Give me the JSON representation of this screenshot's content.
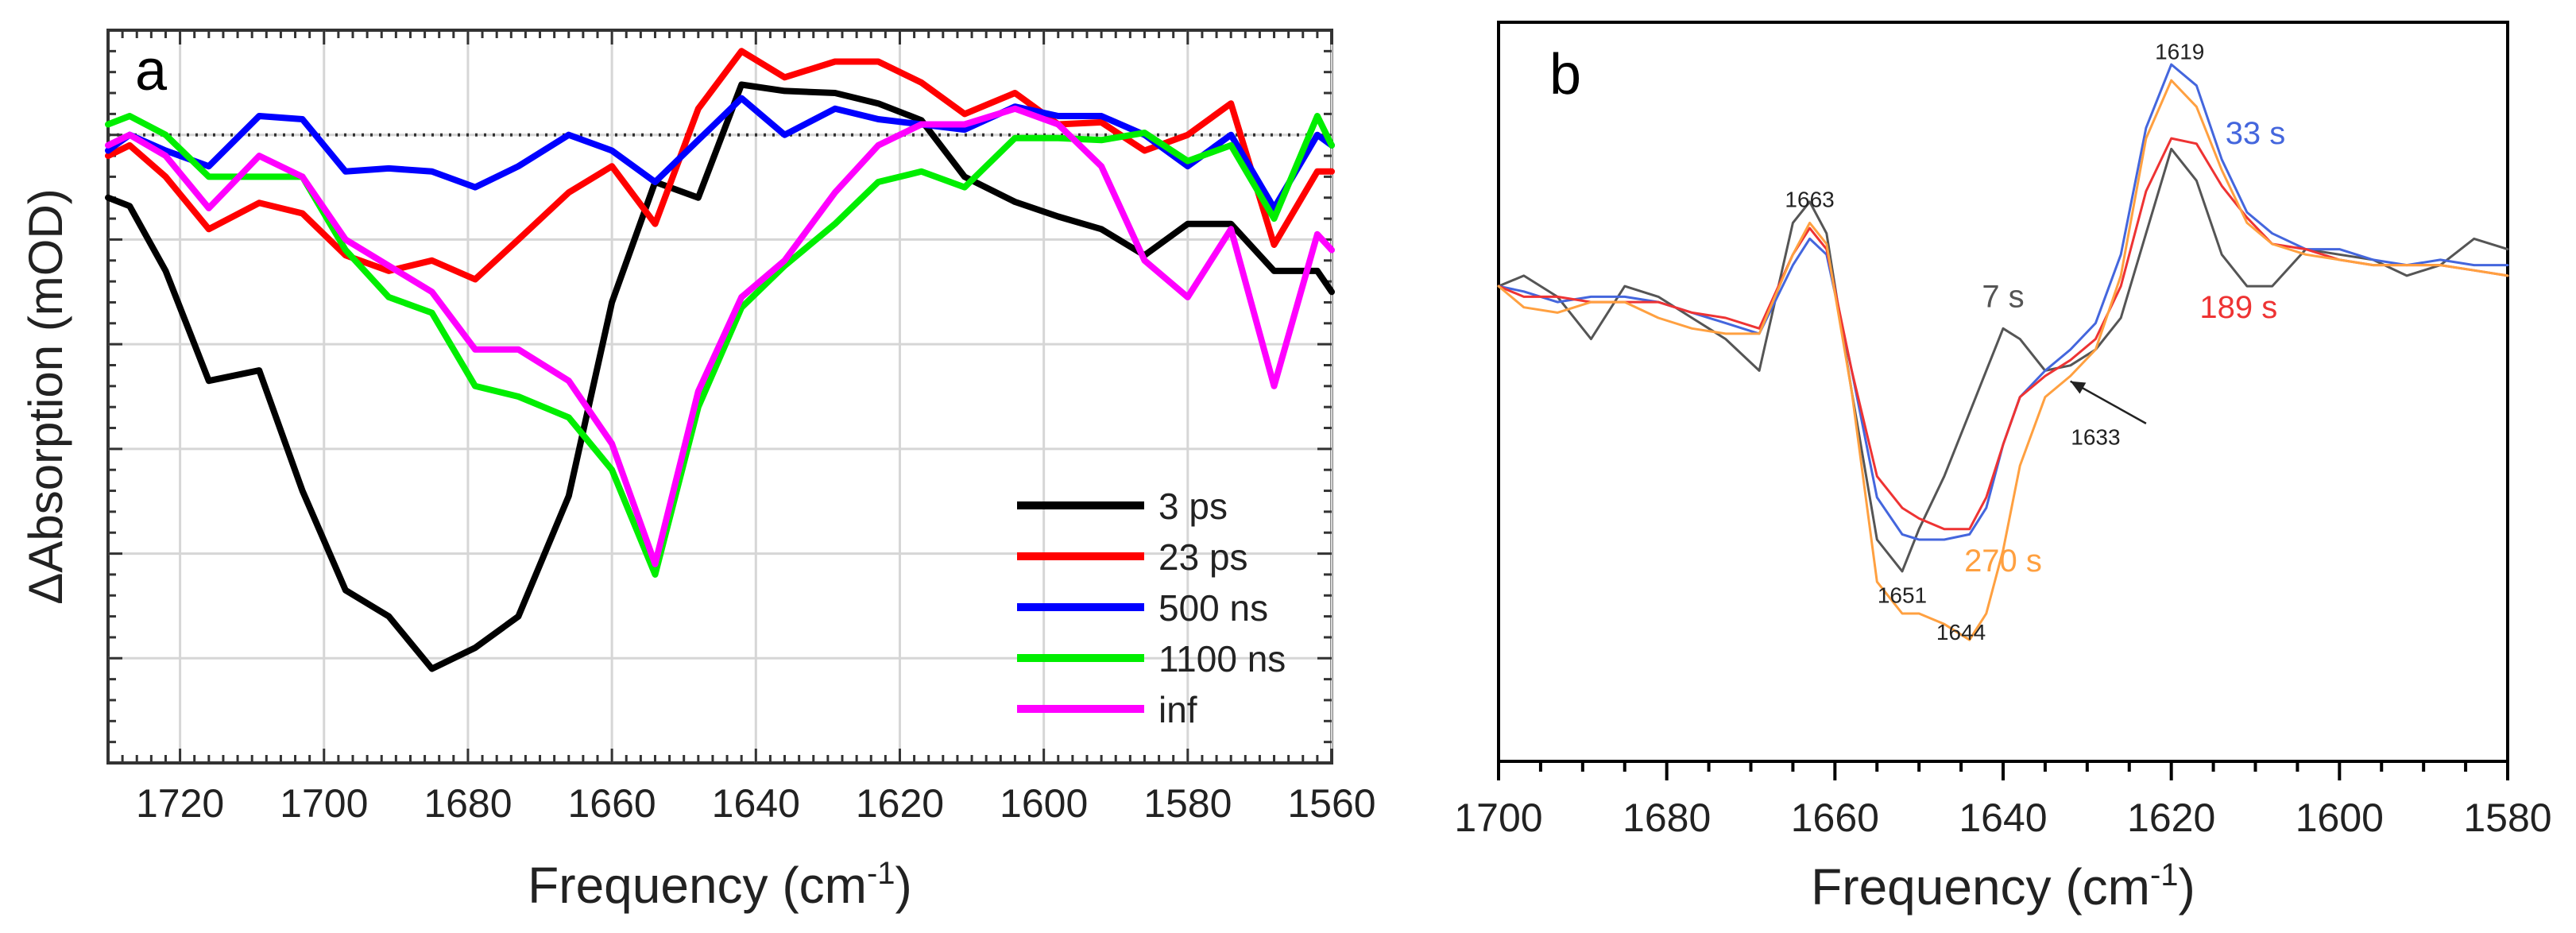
{
  "chart_data": [
    {
      "panel_label": "a",
      "type": "line",
      "xlabel": "Frequency (cm",
      "xlabel_sup": "-1",
      "xlabel_tail": ")",
      "ylabel": "ΔAbsorption (mOD)",
      "xlim": [
        1730,
        1560
      ],
      "ylim": [
        -6.0,
        1.0
      ],
      "xticks": [
        1720,
        1700,
        1680,
        1660,
        1640,
        1620,
        1600,
        1580,
        1560
      ],
      "ygrid": [
        -5,
        -4,
        -3,
        -2,
        -1,
        0
      ],
      "grid": true,
      "zero_line": 0,
      "legend_position": "bottom-right",
      "series": [
        {
          "name": "3 ps",
          "color": "#000000",
          "x": [
            1730,
            1727,
            1722,
            1716,
            1709,
            1703,
            1697,
            1691,
            1685,
            1679,
            1673,
            1666,
            1660,
            1654,
            1648,
            1642,
            1636,
            1629,
            1623,
            1617,
            1611,
            1604,
            1598,
            1592,
            1586,
            1580,
            1574,
            1568,
            1562,
            1560
          ],
          "y": [
            -0.6,
            -0.68,
            -1.3,
            -2.35,
            -2.25,
            -3.4,
            -4.35,
            -4.6,
            -5.1,
            -4.9,
            -4.6,
            -3.45,
            -1.6,
            -0.45,
            -0.6,
            0.48,
            0.42,
            0.4,
            0.3,
            0.14,
            -0.4,
            -0.64,
            -0.78,
            -0.9,
            -1.15,
            -0.85,
            -0.85,
            -1.3,
            -1.3,
            -1.5
          ]
        },
        {
          "name": "23 ps",
          "color": "#ff0000",
          "x": [
            1730,
            1727,
            1722,
            1716,
            1709,
            1703,
            1697,
            1691,
            1685,
            1679,
            1673,
            1666,
            1660,
            1654,
            1648,
            1642,
            1636,
            1629,
            1623,
            1617,
            1611,
            1604,
            1598,
            1592,
            1586,
            1580,
            1574,
            1568,
            1562,
            1560
          ],
          "y": [
            -0.2,
            -0.1,
            -0.4,
            -0.9,
            -0.65,
            -0.75,
            -1.15,
            -1.3,
            -1.2,
            -1.38,
            -1.0,
            -0.55,
            -0.3,
            -0.85,
            0.25,
            0.8,
            0.55,
            0.7,
            0.7,
            0.5,
            0.2,
            0.4,
            0.1,
            0.12,
            -0.15,
            0.0,
            0.3,
            -1.05,
            -0.35,
            -0.35
          ]
        },
        {
          "name": "500 ns",
          "color": "#0000ff",
          "x": [
            1730,
            1727,
            1722,
            1716,
            1709,
            1703,
            1697,
            1691,
            1685,
            1679,
            1673,
            1666,
            1660,
            1654,
            1648,
            1642,
            1636,
            1629,
            1623,
            1617,
            1611,
            1604,
            1598,
            1592,
            1586,
            1580,
            1574,
            1568,
            1562,
            1560
          ],
          "y": [
            -0.15,
            0.0,
            -0.15,
            -0.3,
            0.18,
            0.15,
            -0.35,
            -0.32,
            -0.35,
            -0.5,
            -0.3,
            0.0,
            -0.15,
            -0.45,
            -0.05,
            0.35,
            0.0,
            0.25,
            0.15,
            0.1,
            0.05,
            0.27,
            0.18,
            0.18,
            0.0,
            -0.3,
            0.0,
            -0.7,
            0.0,
            -0.1
          ]
        },
        {
          "name": "1100 ns",
          "color": "#00ee00",
          "x": [
            1730,
            1727,
            1722,
            1716,
            1709,
            1703,
            1697,
            1691,
            1685,
            1679,
            1673,
            1666,
            1660,
            1654,
            1648,
            1642,
            1636,
            1629,
            1623,
            1617,
            1611,
            1604,
            1598,
            1592,
            1586,
            1580,
            1574,
            1568,
            1562,
            1560
          ],
          "y": [
            0.1,
            0.18,
            0.0,
            -0.4,
            -0.4,
            -0.4,
            -1.1,
            -1.55,
            -1.7,
            -2.4,
            -2.5,
            -2.7,
            -3.2,
            -4.2,
            -2.6,
            -1.65,
            -1.25,
            -0.85,
            -0.45,
            -0.35,
            -0.5,
            -0.03,
            -0.03,
            -0.05,
            0.02,
            -0.25,
            -0.1,
            -0.8,
            0.18,
            -0.1
          ]
        },
        {
          "name": "inf",
          "color": "#ff00ff",
          "x": [
            1730,
            1727,
            1722,
            1716,
            1709,
            1703,
            1697,
            1691,
            1685,
            1679,
            1673,
            1666,
            1660,
            1654,
            1648,
            1642,
            1636,
            1629,
            1623,
            1617,
            1611,
            1604,
            1598,
            1592,
            1586,
            1580,
            1574,
            1568,
            1562,
            1560
          ],
          "y": [
            -0.1,
            0.0,
            -0.2,
            -0.7,
            -0.2,
            -0.4,
            -1.0,
            -1.25,
            -1.5,
            -2.05,
            -2.05,
            -2.35,
            -2.95,
            -4.1,
            -2.45,
            -1.55,
            -1.2,
            -0.55,
            -0.1,
            0.1,
            0.1,
            0.25,
            0.1,
            -0.3,
            -1.2,
            -1.55,
            -0.9,
            -2.4,
            -0.95,
            -1.1
          ]
        }
      ]
    },
    {
      "panel_label": "b",
      "type": "line",
      "xlabel": "Frequency (cm",
      "xlabel_sup": "-1",
      "xlabel_tail": ")",
      "xlim": [
        1700,
        1580
      ],
      "ylim": [
        -4.5,
        2.5
      ],
      "xticks": [
        1700,
        1680,
        1660,
        1640,
        1620,
        1600,
        1580
      ],
      "grid": false,
      "annotations": [
        {
          "text": "1663",
          "x": 1663,
          "y": 0.75
        },
        {
          "text": "1619",
          "x": 1619,
          "y": 2.15
        },
        {
          "text": "1651",
          "x": 1652,
          "y": -3.0
        },
        {
          "text": "1644",
          "x": 1645,
          "y": -3.35
        },
        {
          "text": "1633",
          "x": 1629,
          "y": -1.5,
          "arrow_to": [
            1632,
            -0.9
          ],
          "arrow_from": [
            1623,
            -1.3
          ]
        }
      ],
      "series": [
        {
          "name": "7 s",
          "color": "#555555",
          "label_at": [
            1640,
            -0.2
          ],
          "x": [
            1700,
            1697,
            1693,
            1689,
            1685,
            1681,
            1677,
            1673,
            1669,
            1665,
            1663,
            1661,
            1658,
            1655,
            1652,
            1650,
            1647,
            1644,
            1642,
            1640,
            1638,
            1635,
            1632,
            1629,
            1626,
            1623,
            1620,
            1617,
            1614,
            1611,
            1608,
            1604,
            1600,
            1596,
            1592,
            1588,
            1584,
            1580
          ],
          "y": [
            0.0,
            0.1,
            -0.1,
            -0.5,
            0.0,
            -0.1,
            -0.3,
            -0.5,
            -0.8,
            0.6,
            0.8,
            0.5,
            -1.0,
            -2.4,
            -2.7,
            -2.3,
            -1.8,
            -1.2,
            -0.8,
            -0.4,
            -0.5,
            -0.8,
            -0.75,
            -0.6,
            -0.3,
            0.5,
            1.3,
            1.0,
            0.3,
            0.0,
            0.0,
            0.35,
            0.3,
            0.25,
            0.1,
            0.2,
            0.45,
            0.35
          ]
        },
        {
          "name": "33 s",
          "color": "#4466dd",
          "label_at": [
            1610,
            1.35
          ],
          "x": [
            1700,
            1697,
            1693,
            1689,
            1685,
            1681,
            1677,
            1673,
            1669,
            1665,
            1663,
            1661,
            1658,
            1655,
            1652,
            1650,
            1647,
            1644,
            1642,
            1640,
            1638,
            1635,
            1632,
            1629,
            1626,
            1623,
            1620,
            1617,
            1614,
            1611,
            1608,
            1604,
            1600,
            1596,
            1592,
            1588,
            1584,
            1580
          ],
          "y": [
            0.0,
            -0.05,
            -0.15,
            -0.1,
            -0.1,
            -0.15,
            -0.25,
            -0.35,
            -0.45,
            0.2,
            0.45,
            0.3,
            -0.8,
            -2.0,
            -2.35,
            -2.4,
            -2.4,
            -2.35,
            -2.1,
            -1.5,
            -1.05,
            -0.8,
            -0.6,
            -0.35,
            0.3,
            1.5,
            2.1,
            1.9,
            1.2,
            0.7,
            0.5,
            0.35,
            0.35,
            0.25,
            0.2,
            0.25,
            0.2,
            0.2
          ]
        },
        {
          "name": "189 s",
          "color": "#ee3333",
          "label_at": [
            1612,
            -0.3
          ],
          "x": [
            1700,
            1697,
            1693,
            1689,
            1685,
            1681,
            1677,
            1673,
            1669,
            1665,
            1663,
            1661,
            1658,
            1655,
            1652,
            1650,
            1647,
            1644,
            1642,
            1640,
            1638,
            1635,
            1632,
            1629,
            1626,
            1623,
            1620,
            1617,
            1614,
            1611,
            1608,
            1604,
            1600,
            1596,
            1592,
            1588,
            1584,
            1580
          ],
          "y": [
            0.0,
            -0.1,
            -0.1,
            -0.15,
            -0.15,
            -0.15,
            -0.25,
            -0.3,
            -0.4,
            0.3,
            0.55,
            0.35,
            -0.8,
            -1.8,
            -2.1,
            -2.2,
            -2.3,
            -2.3,
            -2.0,
            -1.5,
            -1.05,
            -0.85,
            -0.7,
            -0.5,
            0.0,
            0.9,
            1.4,
            1.35,
            0.95,
            0.65,
            0.4,
            0.35,
            0.25,
            0.2,
            0.2,
            0.2,
            0.15,
            0.1
          ]
        },
        {
          "name": "270 s",
          "color": "#ffa040",
          "label_at": [
            1640,
            -2.7
          ],
          "x": [
            1700,
            1697,
            1693,
            1689,
            1685,
            1681,
            1677,
            1673,
            1669,
            1665,
            1663,
            1661,
            1658,
            1655,
            1652,
            1650,
            1647,
            1644,
            1642,
            1640,
            1638,
            1635,
            1632,
            1629,
            1626,
            1623,
            1620,
            1617,
            1614,
            1611,
            1608,
            1604,
            1600,
            1596,
            1592,
            1588,
            1584,
            1580
          ],
          "y": [
            0.0,
            -0.2,
            -0.25,
            -0.15,
            -0.15,
            -0.3,
            -0.4,
            -0.45,
            -0.45,
            0.3,
            0.6,
            0.4,
            -1.0,
            -2.8,
            -3.1,
            -3.1,
            -3.2,
            -3.35,
            -3.1,
            -2.5,
            -1.7,
            -1.05,
            -0.85,
            -0.6,
            0.1,
            1.4,
            1.95,
            1.7,
            1.1,
            0.6,
            0.4,
            0.3,
            0.25,
            0.2,
            0.2,
            0.2,
            0.15,
            0.1
          ]
        }
      ]
    }
  ]
}
